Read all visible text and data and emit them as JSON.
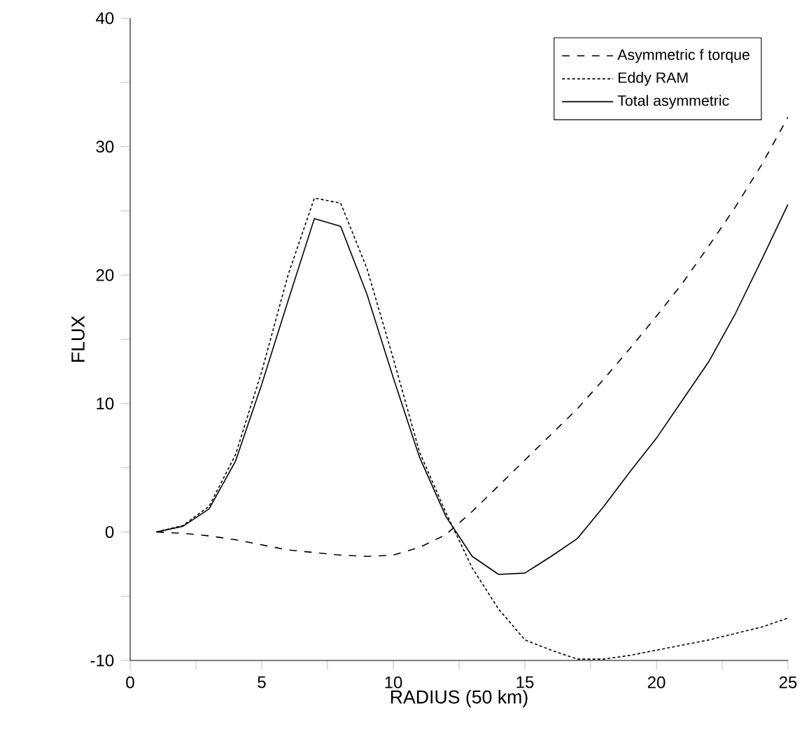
{
  "chart_data": {
    "type": "line",
    "xlabel": "RADIUS (50 km)",
    "ylabel": "FLUX",
    "x": [
      1,
      2,
      3,
      4,
      5,
      6,
      7,
      8,
      9,
      10,
      11,
      12,
      13,
      14,
      15,
      16,
      17,
      18,
      19,
      20,
      21,
      22,
      23,
      24,
      25
    ],
    "xlim": [
      0,
      25
    ],
    "ylim": [
      -10,
      40
    ],
    "xticks": [
      0,
      {
        "value": 2.5,
        "label": null
      },
      5,
      {
        "value": 7.5,
        "label": null
      },
      10,
      {
        "value": 12.5,
        "label": null
      },
      15,
      {
        "value": 17.5,
        "label": null
      },
      20,
      {
        "value": 22.5,
        "label": null
      },
      25
    ],
    "yticks": [
      -10,
      {
        "value": -5,
        "label": null
      },
      0,
      {
        "value": 5,
        "label": null
      },
      10,
      {
        "value": 15,
        "label": null
      },
      20,
      {
        "value": 25,
        "label": null
      },
      30,
      {
        "value": 35,
        "label": null
      },
      40
    ],
    "grid": false,
    "legend": "top right",
    "marker": "none",
    "series": [
      {
        "name": "Asymmetric f torque",
        "color": "#000000",
        "line_style": "dashed",
        "values": [
          0,
          -0.1,
          -0.3,
          -0.6,
          -1.0,
          -1.4,
          -1.6,
          -1.8,
          -1.9,
          -1.8,
          -1.2,
          -0.2,
          1.6,
          3.6,
          5.6,
          7.6,
          9.6,
          11.9,
          14.3,
          16.8,
          19.4,
          22.3,
          25.3,
          28.6,
          32.3
        ]
      },
      {
        "name": "Eddy RAM",
        "color": "#000000",
        "line_style": "dotted",
        "values": [
          0,
          0.5,
          2.0,
          6.0,
          12.5,
          20.0,
          26.0,
          25.6,
          20.5,
          13.5,
          6.2,
          1.5,
          -2.8,
          -6.0,
          -8.4,
          -9.2,
          -9.9,
          -9.9,
          -9.6,
          -9.2,
          -8.8,
          -8.4,
          -7.9,
          -7.4,
          -6.7
        ]
      },
      {
        "name": "Total asymmetric",
        "color": "#000000",
        "line_style": "solid",
        "values": [
          0,
          0.44,
          1.8,
          5.5,
          11.5,
          18.0,
          24.4,
          23.8,
          18.5,
          12.0,
          5.8,
          1.2,
          -1.9,
          -3.3,
          -3.2,
          -1.9,
          -0.5,
          2.0,
          4.7,
          7.3,
          10.3,
          13.3,
          17.0,
          21.2,
          25.5
        ]
      }
    ]
  }
}
